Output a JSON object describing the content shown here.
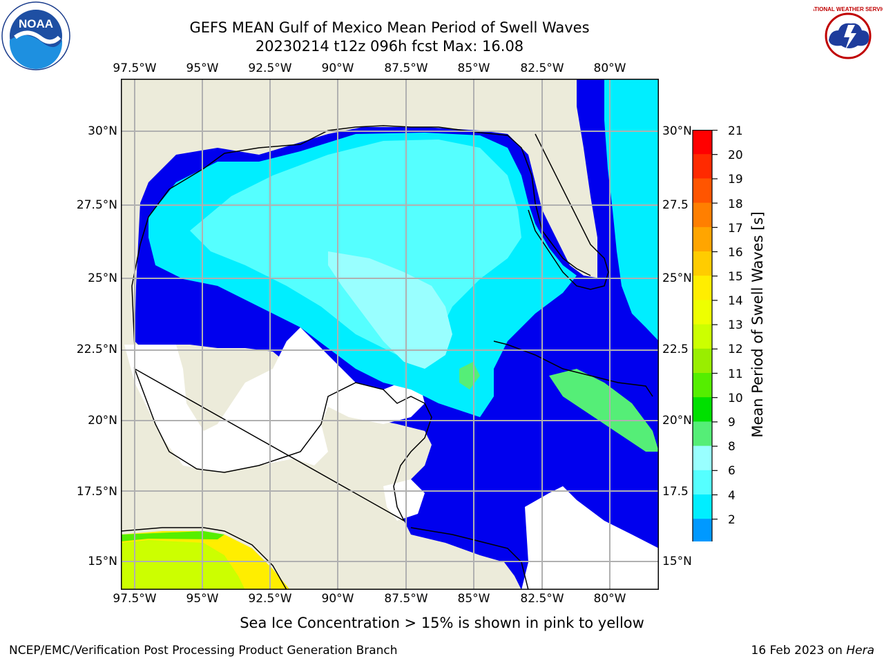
{
  "title": {
    "line1": "GEFS MEAN Gulf of Mexico Mean Period of Swell Waves",
    "line2": "20230214 t12z 096h fcst   Max: 16.08"
  },
  "logos": {
    "left": "noaa-logo",
    "left_text": "NOAA",
    "right": "national-weather-service-logo",
    "right_text": "NATIONAL WEATHER SERVICE"
  },
  "map": {
    "lon_labels": [
      "97.5°W",
      "95°W",
      "92.5°W",
      "90°W",
      "87.5°W",
      "85°W",
      "82.5°W",
      "80°W"
    ],
    "lat_labels_left": [
      "30°N",
      "27.5°N",
      "25°N",
      "22.5°N",
      "20°N",
      "17.5°N",
      "15°N"
    ],
    "lat_labels_right": [
      "30°N",
      "27.5",
      "25°N",
      "22.5",
      "20°N",
      "17.5",
      "15°N"
    ],
    "colors": {
      "land": "#ecebda",
      "mask": "#ffffff",
      "grid": "#b0b0b0"
    }
  },
  "colorbar": {
    "title": "Mean Period of Swell Waves [s]",
    "labels": [
      "21",
      "20",
      "19",
      "18",
      "17",
      "16",
      "15",
      "14",
      "13",
      "12",
      "11",
      "10",
      "9",
      "8",
      "6",
      "4",
      "2"
    ],
    "colors": [
      "#ff0000",
      "#ff2a00",
      "#ff5500",
      "#ff7f00",
      "#ffa500",
      "#ffcc00",
      "#ffee00",
      "#eeff00",
      "#ccff00",
      "#99ee00",
      "#55ee00",
      "#00e000",
      "#55ee77",
      "#99ffff",
      "#55ffff",
      "#00eeff",
      "#0099ff",
      "#0000ff"
    ]
  },
  "note": "Sea Ice Concentration > 15% is shown in pink to yellow",
  "footer": {
    "left": "NCEP/EMC/Verification Post Processing Product Generation Branch",
    "date": "16 Feb 2023 on ",
    "host": "Hera"
  }
}
